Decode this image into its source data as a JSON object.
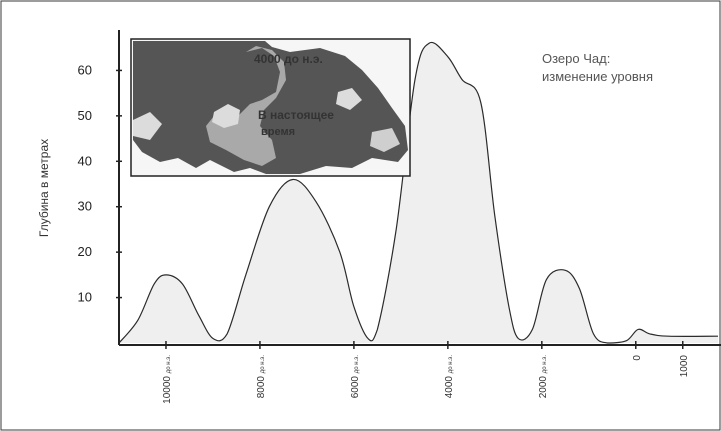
{
  "chart_data": {
    "type": "area",
    "title": "",
    "xlabel": "",
    "ylabel": "Глубина в метрах",
    "ylim": [
      0,
      70
    ],
    "yticks": [
      10,
      20,
      30,
      40,
      50,
      60
    ],
    "xlim": [
      -11000,
      1750
    ],
    "xticks": [
      {
        "value": -10000,
        "label": "10000 до н.э."
      },
      {
        "value": -8000,
        "label": "8000 до н.э."
      },
      {
        "value": -6000,
        "label": "6000 до н.э."
      },
      {
        "value": -4000,
        "label": "4000 до н.э."
      },
      {
        "value": -2000,
        "label": "2000 до н.э."
      },
      {
        "value": 0,
        "label": "0"
      },
      {
        "value": 1000,
        "label": "1000"
      }
    ],
    "series": [
      {
        "points": [
          [
            -11000,
            0
          ],
          [
            -10600,
            5
          ],
          [
            -10250,
            13
          ],
          [
            -10000,
            15
          ],
          [
            -9650,
            13
          ],
          [
            -9300,
            6
          ],
          [
            -9000,
            1
          ],
          [
            -8700,
            2
          ],
          [
            -8300,
            15
          ],
          [
            -7800,
            30
          ],
          [
            -7300,
            36
          ],
          [
            -6800,
            31
          ],
          [
            -6300,
            20
          ],
          [
            -6000,
            8
          ],
          [
            -5700,
            1
          ],
          [
            -5500,
            3
          ],
          [
            -5100,
            25
          ],
          [
            -4700,
            58
          ],
          [
            -4400,
            66
          ],
          [
            -4000,
            63
          ],
          [
            -3700,
            58
          ],
          [
            -3300,
            53
          ],
          [
            -3000,
            28
          ],
          [
            -2700,
            8
          ],
          [
            -2500,
            1
          ],
          [
            -2200,
            3
          ],
          [
            -1900,
            14
          ],
          [
            -1500,
            16
          ],
          [
            -1200,
            12
          ],
          [
            -900,
            2
          ],
          [
            -600,
            0
          ],
          [
            -200,
            0.5
          ],
          [
            50,
            3
          ],
          [
            300,
            2
          ],
          [
            700,
            1.5
          ],
          [
            1750,
            1.5
          ]
        ]
      }
    ],
    "legend": [
      "Озеро Чад:",
      "изменение уровня"
    ],
    "inset_map": {
      "labels": [
        "4000 до н.э.",
        "В настоящее",
        "время"
      ]
    },
    "grid": false
  },
  "colors": {
    "area_fill": "#efefef",
    "line": "#2b2b2b",
    "map_dark": "#555555",
    "map_light": "#a9a9a9",
    "map_pale": "#dcdcdc"
  }
}
